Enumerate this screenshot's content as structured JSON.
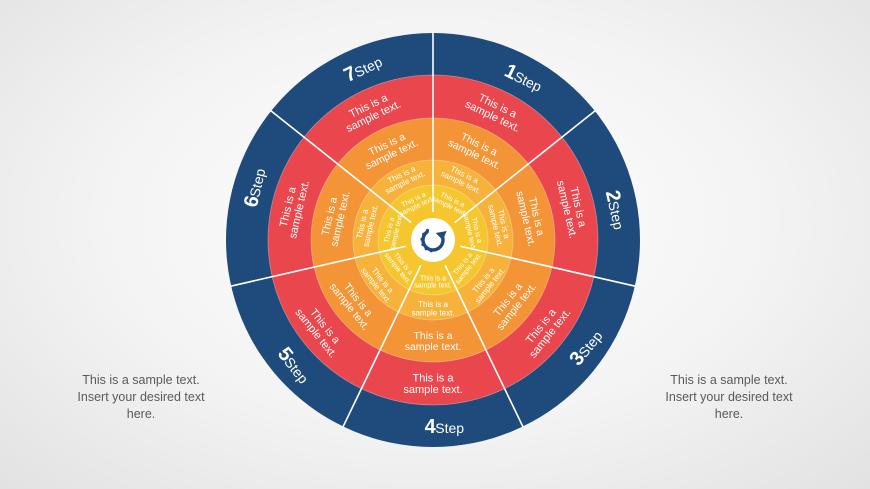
{
  "colors": {
    "outer_ring": "#1f4a7c",
    "ring_red": "#e9474d",
    "ring_orange": "#f39436",
    "ring_yellow_orange": "#f7b23b",
    "ring_yellow": "#f6c62f",
    "center": "#ffffff",
    "center_icon": "#1f4a7c",
    "divider": "#ffffff"
  },
  "center": {
    "icon": "refresh-cycle-icon"
  },
  "steps": [
    {
      "number": "1",
      "label": "Step"
    },
    {
      "number": "2",
      "label": "Step"
    },
    {
      "number": "3",
      "label": "Step"
    },
    {
      "number": "4",
      "label": "Step"
    },
    {
      "number": "5",
      "label": "Step"
    },
    {
      "number": "6",
      "label": "Step"
    },
    {
      "number": "7",
      "label": "Step"
    }
  ],
  "segment_text": [
    "This is a",
    "sample text."
  ],
  "side_notes": {
    "left": [
      "This is a sample  text.",
      "Insert your desired text",
      "here."
    ],
    "right": [
      "This is a sample  text.",
      "Insert your desired text",
      "here."
    ]
  }
}
